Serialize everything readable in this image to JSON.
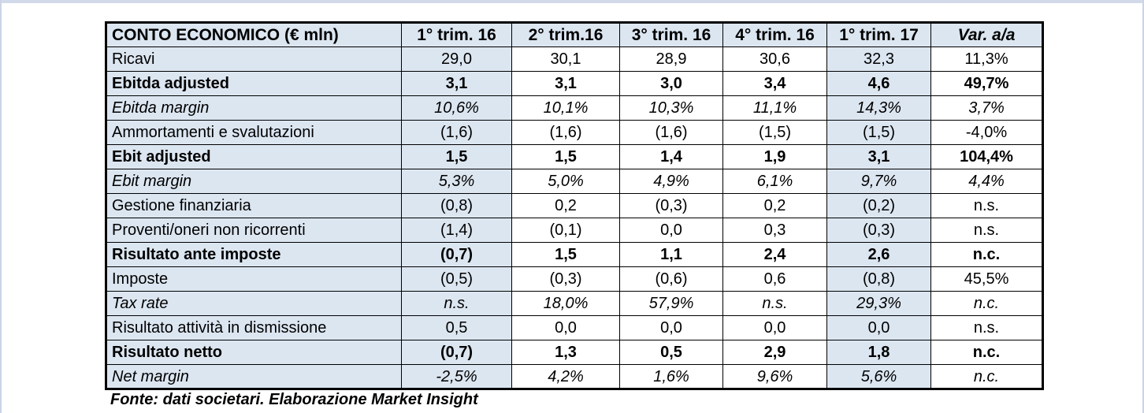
{
  "table": {
    "header": {
      "title": "CONTO ECONOMICO (€ mln)",
      "columns": [
        "1° trim. 16",
        "2° trim.16",
        "3° trim. 16",
        "4° trim. 16",
        "1° trim. 17",
        "Var. a/a"
      ]
    },
    "highlighted_column_indexes": [
      0,
      4
    ],
    "colors": {
      "highlight_fill": "#dce6f1",
      "grid_border": "#000000",
      "page_edge": "#d2d9e8"
    },
    "rows": [
      {
        "label": "Ricavi",
        "style": "normal",
        "values": [
          "29,0",
          "30,1",
          "28,9",
          "30,6",
          "32,3",
          "11,3%"
        ]
      },
      {
        "label": "Ebitda adjusted",
        "style": "bold",
        "values": [
          "3,1",
          "3,1",
          "3,0",
          "3,4",
          "4,6",
          "49,7%"
        ]
      },
      {
        "label": "Ebitda margin",
        "style": "italic",
        "values": [
          "10,6%",
          "10,1%",
          "10,3%",
          "11,1%",
          "14,3%",
          "3,7%"
        ]
      },
      {
        "label": "Ammortamenti e svalutazioni",
        "style": "normal",
        "values": [
          "(1,6)",
          "(1,6)",
          "(1,6)",
          "(1,5)",
          "(1,5)",
          "-4,0%"
        ]
      },
      {
        "label": "Ebit adjusted",
        "style": "bold",
        "values": [
          "1,5",
          "1,5",
          "1,4",
          "1,9",
          "3,1",
          "104,4%"
        ]
      },
      {
        "label": "Ebit margin",
        "style": "italic",
        "values": [
          "5,3%",
          "5,0%",
          "4,9%",
          "6,1%",
          "9,7%",
          "4,4%"
        ]
      },
      {
        "label": "Gestione finanziaria",
        "style": "normal",
        "values": [
          "(0,8)",
          "0,2",
          "(0,3)",
          "0,2",
          "(0,2)",
          "n.s."
        ]
      },
      {
        "label": "Proventi/oneri non ricorrenti",
        "style": "normal",
        "values": [
          "(1,4)",
          "(0,1)",
          "0,0",
          "0,3",
          "(0,3)",
          "n.s."
        ]
      },
      {
        "label": "Risultato ante imposte",
        "style": "bold",
        "values": [
          "(0,7)",
          "1,5",
          "1,1",
          "2,4",
          "2,6",
          "n.c."
        ]
      },
      {
        "label": "Imposte",
        "style": "normal",
        "values": [
          "(0,5)",
          "(0,3)",
          "(0,6)",
          "0,6",
          "(0,8)",
          "45,5%"
        ]
      },
      {
        "label": "Tax rate",
        "style": "italic",
        "values": [
          "n.s.",
          "18,0%",
          "57,9%",
          "n.s.",
          "29,3%",
          "n.c."
        ]
      },
      {
        "label": "Risultato attività in dismissione",
        "style": "normal",
        "values": [
          "0,5",
          "0,0",
          "0,0",
          "0,0",
          "0,0",
          "n.s."
        ]
      },
      {
        "label": "Risultato netto",
        "style": "bold",
        "values": [
          "(0,7)",
          "1,3",
          "0,5",
          "2,9",
          "1,8",
          "n.c."
        ]
      },
      {
        "label": "Net margin",
        "style": "italic",
        "values": [
          "-2,5%",
          "4,2%",
          "1,6%",
          "9,6%",
          "5,6%",
          "n.c."
        ]
      }
    ]
  },
  "footer": {
    "source_note": "Fonte: dati societari. Elaborazione Market Insight"
  }
}
